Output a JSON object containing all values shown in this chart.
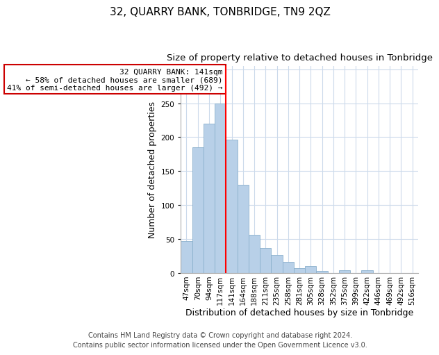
{
  "title": "32, QUARRY BANK, TONBRIDGE, TN9 2QZ",
  "subtitle": "Size of property relative to detached houses in Tonbridge",
  "xlabel": "Distribution of detached houses by size in Tonbridge",
  "ylabel": "Number of detached properties",
  "bar_values": [
    47,
    185,
    220,
    250,
    196,
    130,
    56,
    37,
    27,
    16,
    7,
    10,
    3,
    0,
    4,
    0,
    4
  ],
  "xtick_labels": [
    "47sqm",
    "70sqm",
    "94sqm",
    "117sqm",
    "141sqm",
    "164sqm",
    "188sqm",
    "211sqm",
    "235sqm",
    "258sqm",
    "281sqm",
    "305sqm",
    "328sqm",
    "352sqm",
    "375sqm",
    "399sqm",
    "422sqm",
    "446sqm",
    "469sqm",
    "492sqm",
    "516sqm"
  ],
  "bar_color": "#b8d0e8",
  "bar_edge_color": "#8ab0cc",
  "red_line_index": 4,
  "ylim": [
    0,
    305
  ],
  "yticks": [
    0,
    50,
    100,
    150,
    200,
    250,
    300
  ],
  "annotation_title": "32 QUARRY BANK: 141sqm",
  "annotation_line1": "← 58% of detached houses are smaller (689)",
  "annotation_line2": "41% of semi-detached houses are larger (492) →",
  "annotation_box_color": "#ffffff",
  "annotation_box_edge": "#cc0000",
  "footer_line1": "Contains HM Land Registry data © Crown copyright and database right 2024.",
  "footer_line2": "Contains public sector information licensed under the Open Government Licence v3.0.",
  "background_color": "#ffffff",
  "grid_color": "#ccdaeb",
  "title_fontsize": 11,
  "subtitle_fontsize": 9.5,
  "xlabel_fontsize": 9,
  "ylabel_fontsize": 9,
  "tick_fontsize": 7.5,
  "annotation_fontsize": 8,
  "footer_fontsize": 7
}
